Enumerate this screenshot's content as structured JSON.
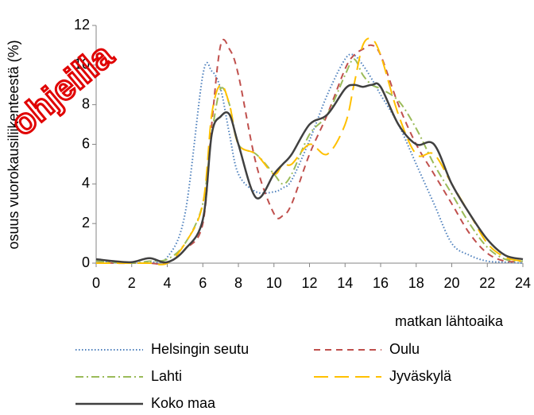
{
  "chart_data": {
    "type": "line",
    "ylabel": "osuus vuorokausiliikenteestä (%)",
    "xlabel": "matkan lähtoaika",
    "annotation": "ohjeilla",
    "x": [
      0,
      1,
      2,
      3,
      4,
      5,
      6,
      6.5,
      7,
      7.5,
      8,
      9,
      10,
      10.5,
      11,
      12,
      13,
      14,
      14.5,
      15,
      15.5,
      16,
      17,
      18,
      19,
      20,
      21,
      22,
      23,
      24
    ],
    "xlim": [
      0,
      24
    ],
    "xticks": [
      0,
      2,
      4,
      6,
      8,
      10,
      12,
      14,
      16,
      18,
      20,
      22,
      24
    ],
    "ylim": [
      0,
      12
    ],
    "yticks": [
      0,
      2,
      4,
      6,
      8,
      10,
      12
    ],
    "grid": false,
    "series": [
      {
        "name": "Helsingin seutu",
        "color": "#4f81bd",
        "dash": "dotted",
        "values": [
          0.1,
          0.05,
          0,
          0.05,
          0.3,
          2.5,
          9.5,
          9.7,
          8.8,
          6.5,
          4.5,
          3.6,
          3.6,
          3.8,
          4.2,
          6.2,
          8.5,
          10.3,
          10.5,
          10,
          9.3,
          8.5,
          7,
          5,
          3,
          1,
          0.4,
          0.1,
          0.05,
          0
        ]
      },
      {
        "name": "Oulu",
        "color": "#c0504d",
        "dash": "dashed",
        "values": [
          0.1,
          0,
          0,
          0,
          0,
          0.7,
          2,
          7,
          11,
          10.8,
          9.5,
          5,
          2.5,
          2.4,
          3,
          5.5,
          7.5,
          9.8,
          10.5,
          10.8,
          11,
          10.5,
          8,
          6,
          4.5,
          3,
          1.5,
          0.5,
          0.1,
          0.1
        ]
      },
      {
        "name": "Lahti",
        "color": "#9bbb59",
        "dash": "dashdot",
        "values": [
          0.1,
          0.05,
          0,
          0.1,
          0.2,
          1,
          3,
          6.5,
          8.8,
          8,
          6,
          5.5,
          4.5,
          4,
          4.5,
          6.5,
          7.5,
          9.5,
          10.3,
          9.5,
          9,
          8.8,
          8.2,
          6.8,
          5,
          3.5,
          2,
          0.8,
          0.2,
          0.1
        ]
      },
      {
        "name": "Jyväskylä",
        "color": "#ffc000",
        "dash": "longdash",
        "values": [
          0,
          0,
          0,
          0,
          0,
          1,
          3,
          7.5,
          9,
          8,
          6,
          5.5,
          4.5,
          5,
          5,
          6,
          5.5,
          7,
          9,
          11,
          11.3,
          10.5,
          7.5,
          5.5,
          5.5,
          4,
          2.5,
          1,
          0.3,
          0.1
        ]
      },
      {
        "name": "Koko maa",
        "color": "#404040",
        "dash": "solid",
        "values": [
          0.2,
          0.1,
          0.05,
          0.25,
          0.05,
          0.7,
          2.2,
          6.5,
          7.4,
          7.5,
          6,
          3.3,
          4.5,
          5,
          5.5,
          7,
          7.5,
          8.8,
          9,
          8.9,
          9,
          8.9,
          7,
          6,
          6,
          4,
          2.5,
          1.2,
          0.4,
          0.2
        ]
      }
    ]
  }
}
